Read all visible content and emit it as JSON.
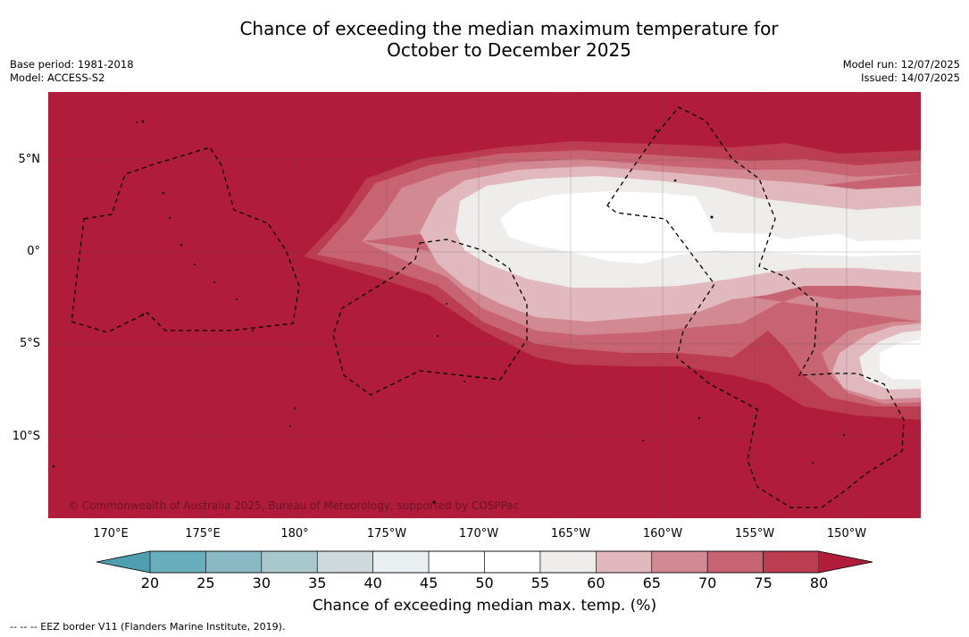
{
  "title_line1": "Chance of exceeding the median maximum temperature for",
  "title_line2": "October to December 2025",
  "meta_left": {
    "base_period": "Base period: 1981-2018",
    "model": "Model: ACCESS-S2"
  },
  "meta_right": {
    "model_run": "Model run: 12/07/2025",
    "issued": "Issued: 14/07/2025"
  },
  "copyright": "© Commonwealth of Australia 2025, Bureau of Meteorology, supported by COSPPac",
  "lon_ticks": [
    "170°E",
    "175°E",
    "180°",
    "175°W",
    "170°W",
    "165°W",
    "160°W",
    "155°W",
    "150°W"
  ],
  "lat_ticks": [
    "5°N",
    "0°",
    "5°S",
    "10°S"
  ],
  "colorbar": {
    "labels": [
      "20",
      "25",
      "30",
      "35",
      "40",
      "45",
      "50",
      "55",
      "60",
      "65",
      "70",
      "75",
      "80"
    ],
    "colors": [
      "#4f9eb0",
      "#69aebd",
      "#89b9c5",
      "#a8c8cc",
      "#cfd8da",
      "#eaeff1",
      "#ffffff",
      "#ffffff",
      "#efedec",
      "#e0b8be",
      "#d38992",
      "#c86371",
      "#bb3d4f",
      "#b01c3a"
    ],
    "title": "Chance of exceeding median max. temp. (%)"
  },
  "footer": "--  --  -- EEZ border V11 (Flanders Marine Institute, 2019).",
  "map_colors": {
    "c80": "#b01c3a",
    "c75": "#bb3d4f",
    "c70": "#c86371",
    "c65": "#d38992",
    "c60": "#e0b8be",
    "c55": "#efedec",
    "c50": "#ffffff"
  }
}
